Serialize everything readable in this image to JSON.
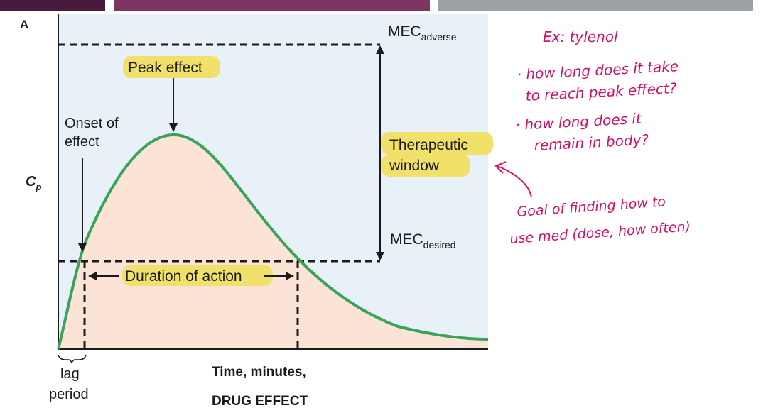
{
  "colors": {
    "bar1": "#4a1a3e",
    "bar2": "#7d3563",
    "bar3": "#9da1a6",
    "plot_bg": "#e8f0f8",
    "fill_under_curve": "#fbe3d6",
    "curve": "#3aa35a",
    "highlight": "#f1e16a",
    "handwriting": "#d0106a"
  },
  "figure": {
    "panel_label": "A",
    "y_axis_label": "C",
    "y_axis_label_sub": "p",
    "mec_adverse": "MEC",
    "mec_adverse_sub": "adverse",
    "mec_desired": "MEC",
    "mec_desired_sub": "desired",
    "peak_effect": "Peak effect",
    "onset_line1": "Onset of",
    "onset_line2": "effect",
    "therapeutic_line1": "Therapeutic",
    "therapeutic_line2": "window",
    "duration": "Duration of action",
    "lag_line1": "lag",
    "lag_line2": "period",
    "x_label_line1": "Time, minutes,",
    "x_label_line2": "DRUG EFFECT"
  },
  "notes": {
    "title": "Ex: tylenol",
    "bullet1_line1": "· how long does it take",
    "bullet1_line2": "to reach peak effect?",
    "bullet2_line1": "· how long does it",
    "bullet2_line2": "remain in body?",
    "goal_line1": "Goal of finding how to",
    "goal_line2": "use med (dose, how often)"
  }
}
